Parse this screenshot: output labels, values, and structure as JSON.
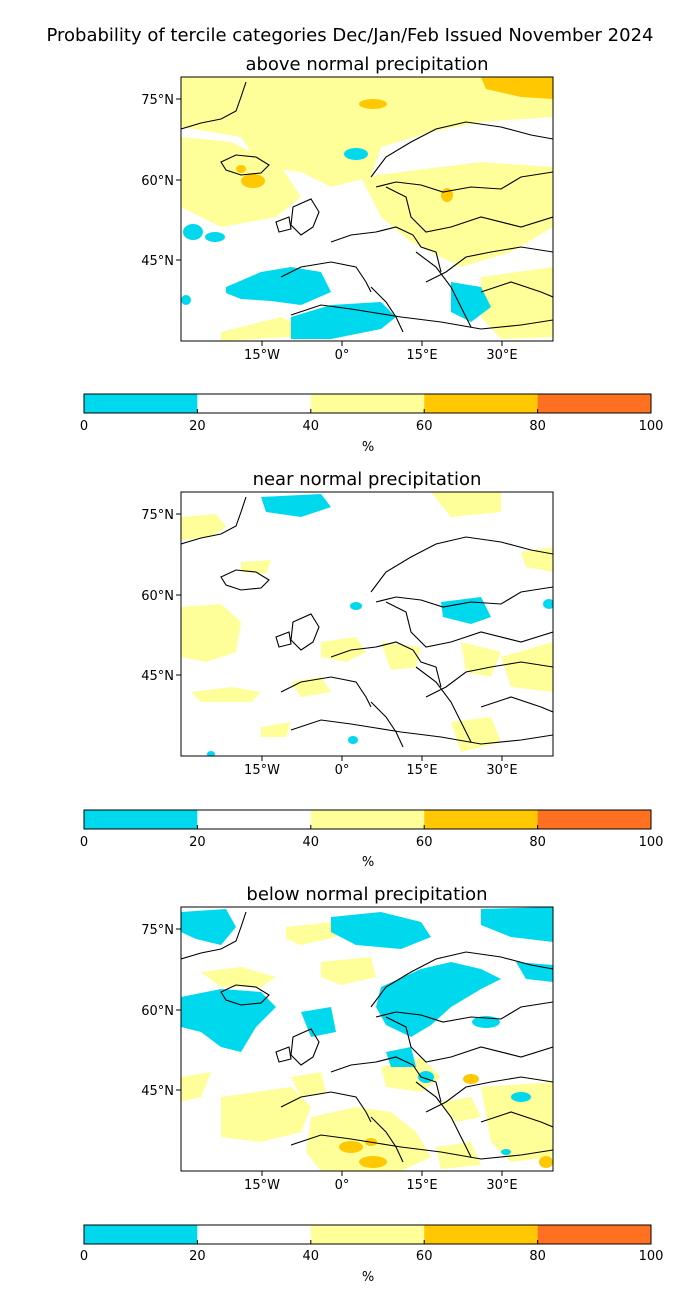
{
  "title": "Probability of tercile categories Dec/Jan/Feb Issued November 2024",
  "colors": {
    "cyan": "#00D8EE",
    "white": "#FFFFFF",
    "light_yellow": "#FFFF99",
    "gold": "#FFC800",
    "orange": "#FF7020",
    "frame": "#000000"
  },
  "axes": {
    "lat_labels": [
      "75°N",
      "60°N",
      "45°N"
    ],
    "lon_labels": [
      "15°W",
      "0°",
      "15°E",
      "30°E"
    ]
  },
  "colorbar": {
    "ticks": [
      "0",
      "20",
      "40",
      "60",
      "80",
      "100"
    ],
    "unit": "%",
    "bins": [
      {
        "range": "0-20",
        "color": "#00D8EE"
      },
      {
        "range": "20-40",
        "color": "#FFFFFF"
      },
      {
        "range": "40-60",
        "color": "#FFFF99"
      },
      {
        "range": "60-80",
        "color": "#FFC800"
      },
      {
        "range": "80-100",
        "color": "#FF7020"
      }
    ]
  },
  "panels": [
    {
      "id": "above",
      "title": "above normal precipitation"
    },
    {
      "id": "near",
      "title": "near normal precipitation"
    },
    {
      "id": "below",
      "title": "below normal precipitation"
    }
  ]
}
